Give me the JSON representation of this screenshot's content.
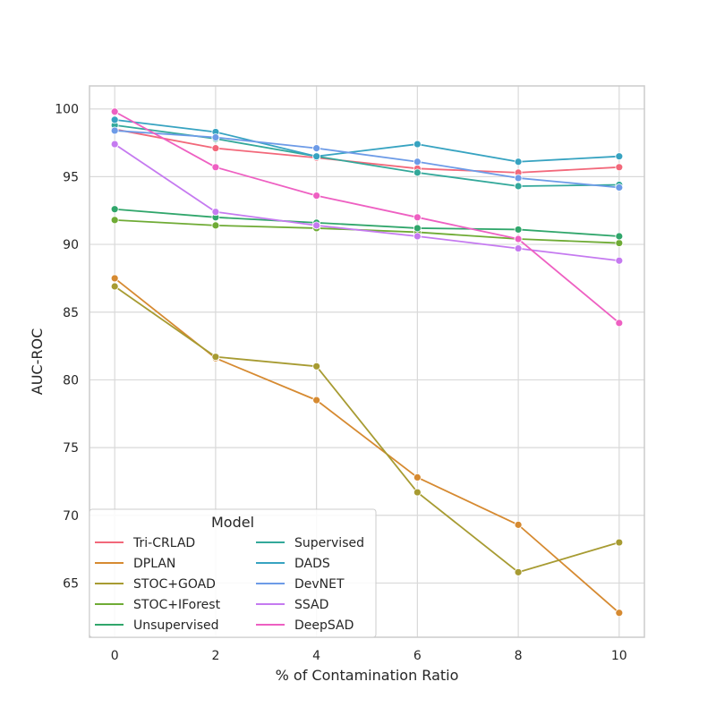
{
  "chart_data": {
    "type": "line",
    "title": "",
    "xlabel": "% of Contamination Ratio",
    "ylabel": "AUC-ROC",
    "x": [
      0,
      2,
      4,
      6,
      8,
      10
    ],
    "xlim": [
      -0.5,
      10.5
    ],
    "ylim": [
      61,
      101.7
    ],
    "xticks": [
      "0",
      "2",
      "4",
      "6",
      "8",
      "10"
    ],
    "yticks": [
      "65",
      "70",
      "75",
      "80",
      "85",
      "90",
      "95",
      "100"
    ],
    "grid": true,
    "legend_title": "Model",
    "legend_position": "lower-left",
    "series": [
      {
        "name": "Tri-CRLAD",
        "color": "#f2687a",
        "values": [
          98.5,
          97.1,
          96.4,
          95.6,
          95.3,
          95.7
        ]
      },
      {
        "name": "DPLAN",
        "color": "#d68a31",
        "values": [
          87.5,
          81.6,
          78.5,
          72.8,
          69.3,
          62.8
        ]
      },
      {
        "name": "STOC+GOAD",
        "color": "#a79b32",
        "values": [
          86.9,
          81.7,
          81.0,
          71.7,
          65.8,
          68.0
        ]
      },
      {
        "name": "STOC+IForest",
        "color": "#6fab35",
        "values": [
          91.8,
          91.4,
          91.2,
          90.9,
          90.4,
          90.1
        ]
      },
      {
        "name": "Unsupervised",
        "color": "#30a66b",
        "values": [
          92.6,
          92.0,
          91.6,
          91.2,
          91.1,
          90.6
        ]
      },
      {
        "name": "Supervised",
        "color": "#33a89a",
        "values": [
          98.8,
          97.8,
          96.5,
          95.3,
          94.3,
          94.4
        ]
      },
      {
        "name": "DADS",
        "color": "#37a3c1",
        "values": [
          99.2,
          98.3,
          96.5,
          97.4,
          96.1,
          96.5
        ]
      },
      {
        "name": "DevNET",
        "color": "#6d9be7",
        "values": [
          98.4,
          97.9,
          97.1,
          96.1,
          94.9,
          94.2
        ]
      },
      {
        "name": "SSAD",
        "color": "#c57af0",
        "values": [
          97.4,
          92.4,
          91.4,
          90.6,
          89.7,
          88.8
        ]
      },
      {
        "name": "DeepSAD",
        "color": "#ee60c2",
        "values": [
          99.8,
          95.7,
          93.6,
          92.0,
          90.4,
          84.2
        ]
      }
    ]
  }
}
